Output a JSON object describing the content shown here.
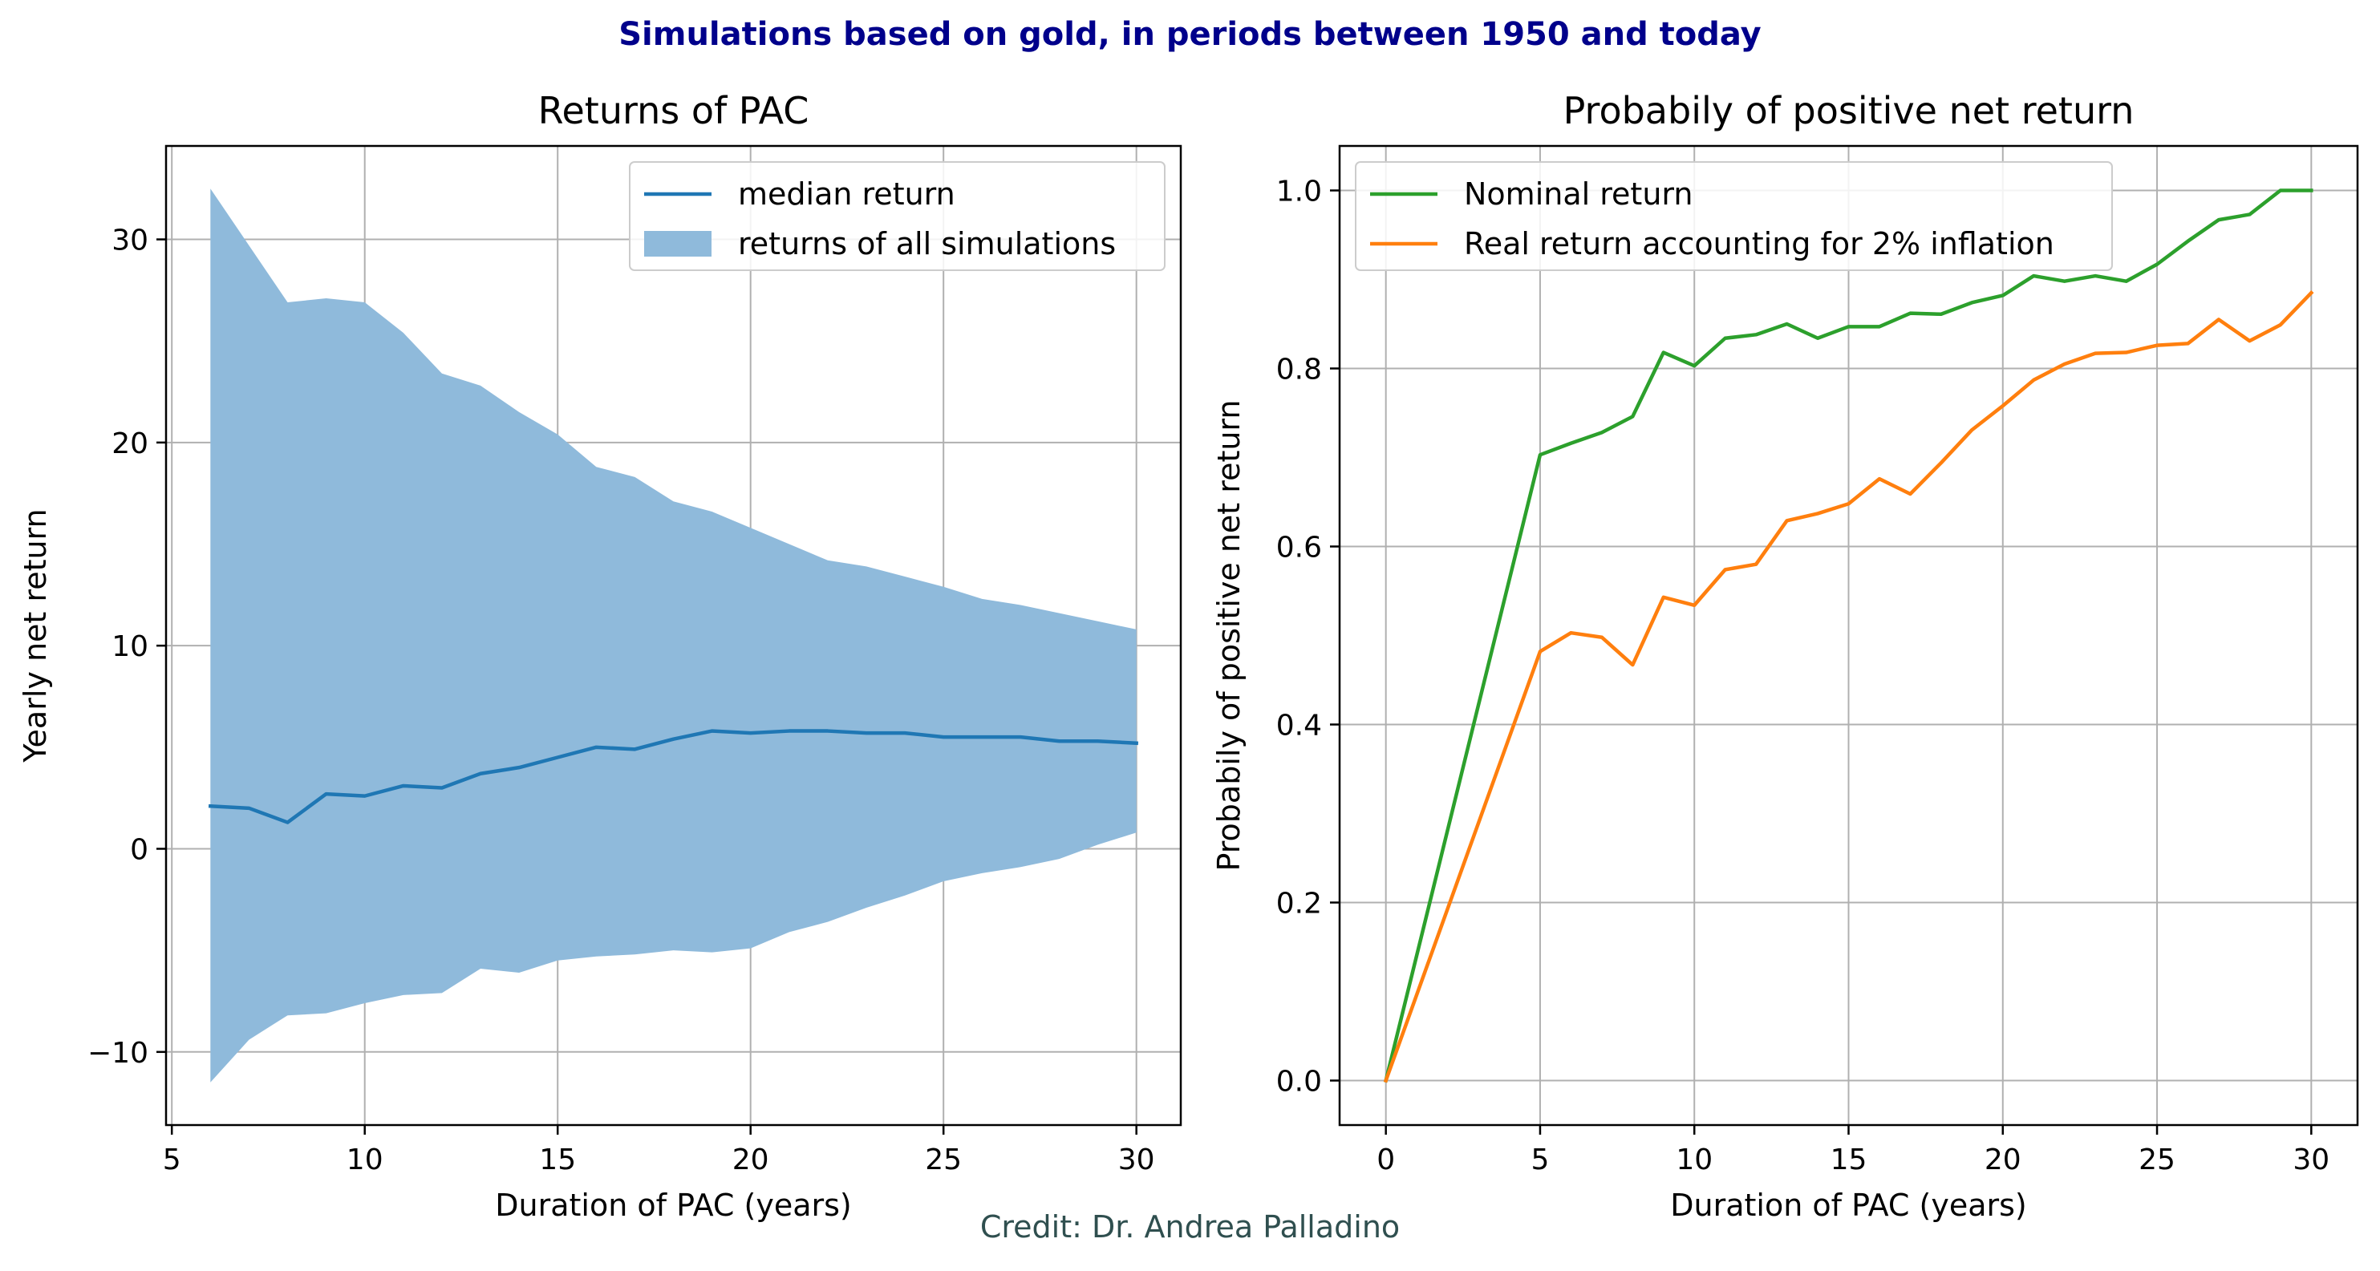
{
  "suptitle": "Simulations based on gold, in periods between 1950 and today",
  "credit": "Credit: Dr. Andrea Palladino",
  "chart_data": [
    {
      "type": "line",
      "title": "Returns of PAC",
      "xlabel": "Duration of PAC (years)",
      "ylabel": "Yearly net return",
      "xlim": [
        4.85,
        31.15
      ],
      "ylim": [
        -13.6,
        34.6
      ],
      "xticks": [
        5,
        10,
        15,
        20,
        25,
        30
      ],
      "yticks": [
        -10,
        0,
        10,
        20,
        30
      ],
      "xtick_labels": [
        "5",
        "10",
        "15",
        "20",
        "25",
        "30"
      ],
      "ytick_labels": [
        "−10",
        "0",
        "10",
        "20",
        "30"
      ],
      "grid": true,
      "legend_position": "top-right",
      "x": [
        6,
        7,
        8,
        9,
        10,
        11,
        12,
        13,
        14,
        15,
        16,
        17,
        18,
        19,
        20,
        21,
        22,
        23,
        24,
        25,
        26,
        27,
        28,
        29,
        30
      ],
      "series": [
        {
          "name": "median return",
          "kind": "line",
          "color": "#1f77b4",
          "values": [
            2.1,
            2.0,
            1.3,
            2.7,
            2.6,
            3.1,
            3.0,
            3.7,
            4.0,
            4.5,
            5.0,
            4.9,
            5.4,
            5.8,
            5.7,
            5.8,
            5.8,
            5.7,
            5.7,
            5.5,
            5.5,
            5.5,
            5.3,
            5.3,
            5.2
          ]
        },
        {
          "name": "returns of all simulations",
          "kind": "band",
          "color": "#8fbadb",
          "upper": [
            32.5,
            29.7,
            26.9,
            27.1,
            26.9,
            25.4,
            23.4,
            22.8,
            21.5,
            20.4,
            18.8,
            18.3,
            17.1,
            16.6,
            15.8,
            15.0,
            14.2,
            13.9,
            13.4,
            12.9,
            12.3,
            12.0,
            11.6,
            11.2,
            10.8
          ],
          "lower": [
            -11.5,
            -9.4,
            -8.2,
            -8.1,
            -7.6,
            -7.2,
            -7.1,
            -5.9,
            -6.1,
            -5.5,
            -5.3,
            -5.2,
            -5.0,
            -5.1,
            -4.9,
            -4.1,
            -3.6,
            -2.9,
            -2.3,
            -1.6,
            -1.2,
            -0.9,
            -0.5,
            0.2,
            0.8
          ]
        }
      ]
    },
    {
      "type": "line",
      "title": "Probabily of positive net return",
      "xlabel": "Duration of PAC (years)",
      "ylabel": "Probabily of positive net return",
      "xlim": [
        -1.5,
        31.5
      ],
      "ylim": [
        -0.05,
        1.05
      ],
      "xticks": [
        0,
        5,
        10,
        15,
        20,
        25,
        30
      ],
      "yticks": [
        0.0,
        0.2,
        0.4,
        0.6,
        0.8,
        1.0
      ],
      "xtick_labels": [
        "0",
        "5",
        "10",
        "15",
        "20",
        "25",
        "30"
      ],
      "ytick_labels": [
        "0.0",
        "0.2",
        "0.4",
        "0.6",
        "0.8",
        "1.0"
      ],
      "grid": true,
      "legend_position": "top-left",
      "x": [
        0,
        5,
        6,
        7,
        8,
        9,
        10,
        11,
        12,
        13,
        14,
        15,
        16,
        17,
        18,
        19,
        20,
        21,
        22,
        23,
        24,
        25,
        26,
        27,
        28,
        29,
        30
      ],
      "series": [
        {
          "name": "Nominal return",
          "color": "#2ca02c",
          "values": [
            0.0,
            0.703,
            0.716,
            0.728,
            0.746,
            0.818,
            0.803,
            0.834,
            0.838,
            0.85,
            0.834,
            0.847,
            0.847,
            0.862,
            0.861,
            0.874,
            0.882,
            0.904,
            0.898,
            0.904,
            0.898,
            0.917,
            0.943,
            0.967,
            0.973,
            1.0,
            1.0
          ]
        },
        {
          "name": "Real return accounting for 2% inflation",
          "color": "#ff7f0e",
          "values": [
            0.0,
            0.482,
            0.503,
            0.498,
            0.467,
            0.543,
            0.534,
            0.574,
            0.58,
            0.629,
            0.637,
            0.648,
            0.676,
            0.659,
            0.694,
            0.731,
            0.758,
            0.787,
            0.805,
            0.817,
            0.818,
            0.826,
            0.828,
            0.855,
            0.831,
            0.849,
            0.885
          ]
        }
      ]
    }
  ]
}
